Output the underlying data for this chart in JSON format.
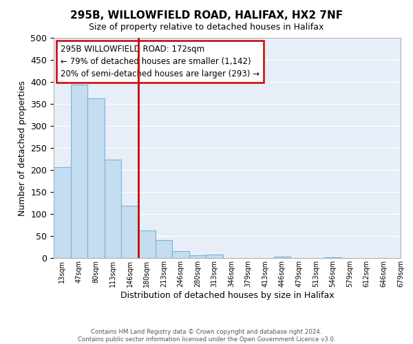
{
  "title": "295B, WILLOWFIELD ROAD, HALIFAX, HX2 7NF",
  "subtitle": "Size of property relative to detached houses in Halifax",
  "xlabel": "Distribution of detached houses by size in Halifax",
  "ylabel": "Number of detached properties",
  "bar_values": [
    207,
    393,
    362,
    224,
    118,
    63,
    41,
    16,
    7,
    8,
    0,
    0,
    0,
    3,
    0,
    0,
    2,
    0,
    0,
    0
  ],
  "bar_labels": [
    "13sqm",
    "47sqm",
    "80sqm",
    "113sqm",
    "146sqm",
    "180sqm",
    "213sqm",
    "246sqm",
    "280sqm",
    "313sqm",
    "346sqm",
    "379sqm",
    "413sqm",
    "446sqm",
    "479sqm",
    "513sqm",
    "546sqm",
    "579sqm",
    "612sqm",
    "646sqm",
    "679sqm"
  ],
  "bar_color": "#c5ddf0",
  "bar_edge_color": "#7ab3d4",
  "red_line_at_label": "180sqm",
  "marker_color": "#cc0000",
  "ylim": [
    0,
    500
  ],
  "yticks": [
    0,
    50,
    100,
    150,
    200,
    250,
    300,
    350,
    400,
    450,
    500
  ],
  "annotation_title": "295B WILLOWFIELD ROAD: 172sqm",
  "annotation_line1": "← 79% of detached houses are smaller (1,142)",
  "annotation_line2": "20% of semi-detached houses are larger (293) →",
  "annotation_box_color": "#ffffff",
  "annotation_box_edge": "#cc0000",
  "footer_line1": "Contains HM Land Registry data © Crown copyright and database right 2024.",
  "footer_line2": "Contains public sector information licensed under the Open Government Licence v3.0.",
  "background_color": "#e8eef8"
}
